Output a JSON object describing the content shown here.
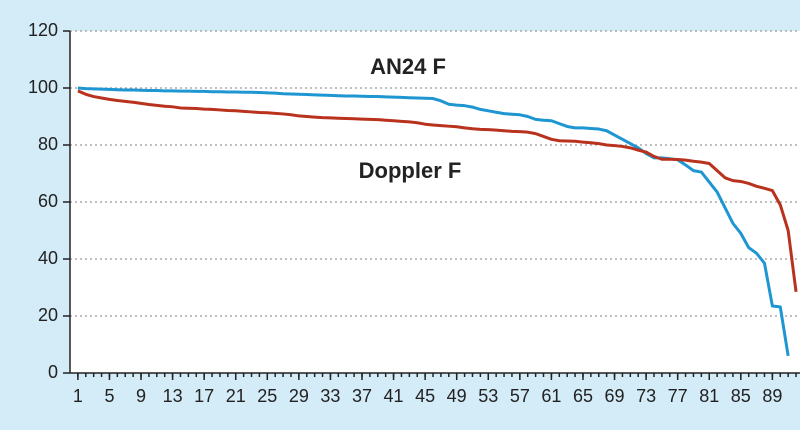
{
  "chart_data": {
    "type": "line",
    "annotations": [
      "AN24 F",
      "Doppler F"
    ],
    "x": [
      1,
      2,
      3,
      4,
      5,
      6,
      7,
      8,
      9,
      10,
      11,
      12,
      13,
      14,
      15,
      16,
      17,
      18,
      19,
      20,
      21,
      22,
      23,
      24,
      25,
      26,
      27,
      28,
      29,
      30,
      31,
      32,
      33,
      34,
      35,
      36,
      37,
      38,
      39,
      40,
      41,
      42,
      43,
      44,
      45,
      46,
      47,
      48,
      49,
      50,
      51,
      52,
      53,
      54,
      55,
      56,
      57,
      58,
      59,
      60,
      61,
      62,
      63,
      64,
      65,
      66,
      67,
      68,
      69,
      70,
      71,
      72,
      73,
      74,
      75,
      76,
      77,
      78,
      79,
      80,
      81,
      82,
      83,
      84,
      85,
      86,
      87,
      88,
      89,
      90,
      91,
      92
    ],
    "series": [
      {
        "name": "AN24 F",
        "color": "#1e96d2",
        "values": [
          100,
          99.8,
          99.7,
          99.6,
          99.5,
          99.4,
          99.3,
          99.3,
          99.2,
          99.1,
          99.1,
          99,
          99,
          98.9,
          98.9,
          98.8,
          98.8,
          98.7,
          98.7,
          98.6,
          98.6,
          98.5,
          98.5,
          98.4,
          98.3,
          98.2,
          98,
          97.9,
          97.8,
          97.7,
          97.6,
          97.5,
          97.4,
          97.3,
          97.2,
          97.2,
          97.1,
          97,
          97,
          96.9,
          96.8,
          96.7,
          96.6,
          96.5,
          96.4,
          96.3,
          95.5,
          94.3,
          94,
          93.8,
          93.3,
          92.5,
          92,
          91.5,
          91,
          90.8,
          90.6,
          90,
          89,
          88.7,
          88.5,
          87.5,
          86.5,
          86,
          86,
          85.8,
          85.6,
          85,
          83.5,
          82,
          80.5,
          79,
          77,
          75.5,
          75.5,
          75.2,
          74.8,
          73,
          71,
          70.5,
          67,
          63.5,
          58,
          52.5,
          49,
          44,
          42,
          38.5,
          23.5,
          23.2,
          6,
          null
        ]
      },
      {
        "name": "Doppler F",
        "color": "#b8321e",
        "values": [
          99,
          97.8,
          97,
          96.5,
          96,
          95.6,
          95.3,
          95,
          94.6,
          94.2,
          93.9,
          93.6,
          93.4,
          93,
          92.9,
          92.8,
          92.6,
          92.5,
          92.3,
          92.1,
          92,
          91.8,
          91.6,
          91.4,
          91.3,
          91.1,
          90.9,
          90.6,
          90.2,
          90,
          89.8,
          89.6,
          89.5,
          89.4,
          89.3,
          89.2,
          89.1,
          89,
          88.9,
          88.7,
          88.5,
          88.3,
          88.1,
          87.8,
          87.3,
          87,
          86.8,
          86.6,
          86.4,
          86,
          85.7,
          85.5,
          85.4,
          85.2,
          85,
          84.8,
          84.7,
          84.5,
          84,
          83,
          82,
          81.5,
          81.4,
          81.3,
          81,
          80.8,
          80.5,
          80,
          79.8,
          79.5,
          79,
          78.2,
          77.5,
          76,
          75,
          75,
          74.9,
          74.7,
          74.3,
          74,
          73.5,
          71,
          68.5,
          67.5,
          67.2,
          66.5,
          65.5,
          64.8,
          64,
          59,
          50,
          28.5
        ]
      }
    ],
    "xlim": [
      0,
      92.5
    ],
    "xticks": [
      1,
      5,
      9,
      13,
      17,
      21,
      25,
      29,
      33,
      37,
      41,
      45,
      49,
      53,
      57,
      61,
      65,
      69,
      73,
      77,
      81,
      85,
      89
    ],
    "ylim": [
      0,
      120
    ],
    "yticks": [
      0,
      20,
      40,
      60,
      80,
      100,
      120
    ],
    "grid": true
  }
}
